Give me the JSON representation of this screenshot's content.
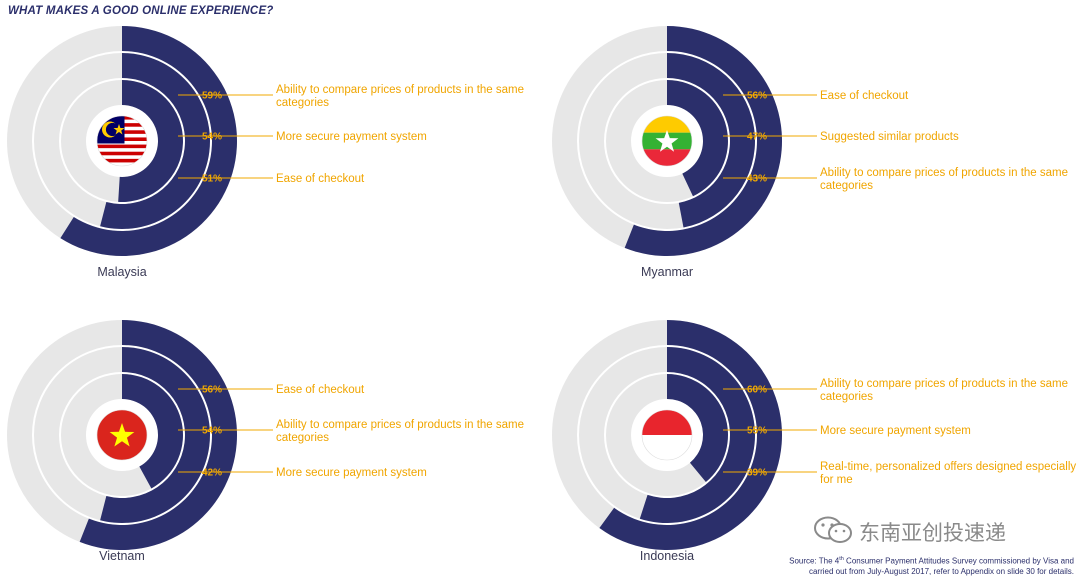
{
  "title": "WHAT MAKES A GOOD ONLINE EXPERIENCE?",
  "colors": {
    "navy": "#2b2f6b",
    "gray": "#e7e7e7",
    "gold": "#f2a900",
    "label_text": "#f0a500"
  },
  "chart_data": [
    {
      "type": "radial-bar",
      "country": "Malaysia",
      "flag": "malaysia",
      "items": [
        {
          "value": 59,
          "label": "59%",
          "text": "Ability to compare prices of products in the same categories"
        },
        {
          "value": 54,
          "label": "54%",
          "text": "More secure payment system"
        },
        {
          "value": 51,
          "label": "51%",
          "text": "Ease of checkout"
        }
      ]
    },
    {
      "type": "radial-bar",
      "country": "Myanmar",
      "flag": "myanmar",
      "items": [
        {
          "value": 56,
          "label": "56%",
          "text": "Ease of checkout"
        },
        {
          "value": 47,
          "label": "47%",
          "text": "Suggested similar products"
        },
        {
          "value": 43,
          "label": "43%",
          "text": "Ability to compare prices of products in the same categories"
        }
      ]
    },
    {
      "type": "radial-bar",
      "country": "Vietnam",
      "flag": "vietnam",
      "items": [
        {
          "value": 56,
          "label": "56%",
          "text": "Ease of checkout"
        },
        {
          "value": 54,
          "label": "54%",
          "text": "Ability to compare prices of products in the same categories"
        },
        {
          "value": 42,
          "label": "42%",
          "text": "More secure payment system"
        }
      ]
    },
    {
      "type": "radial-bar",
      "country": "Indonesia",
      "flag": "indonesia",
      "items": [
        {
          "value": 60,
          "label": "60%",
          "text": "Ability to compare prices of products in the same categories"
        },
        {
          "value": 55,
          "label": "55%",
          "text": "More secure payment system"
        },
        {
          "value": 39,
          "label": "39%",
          "text": "Real-time, personalized offers designed especially for me"
        }
      ]
    }
  ],
  "watermark": {
    "text": "东南亚创投速递",
    "icon": "wechat-icon"
  },
  "source": {
    "line1_prefix": "Source: The 4",
    "line1_sup": "th",
    "line1_suffix": " Consumer Payment Attitudes Survey commissioned by Visa and",
    "line2": "carried out from July-August 2017, refer to Appendix on slide 30 for details."
  }
}
